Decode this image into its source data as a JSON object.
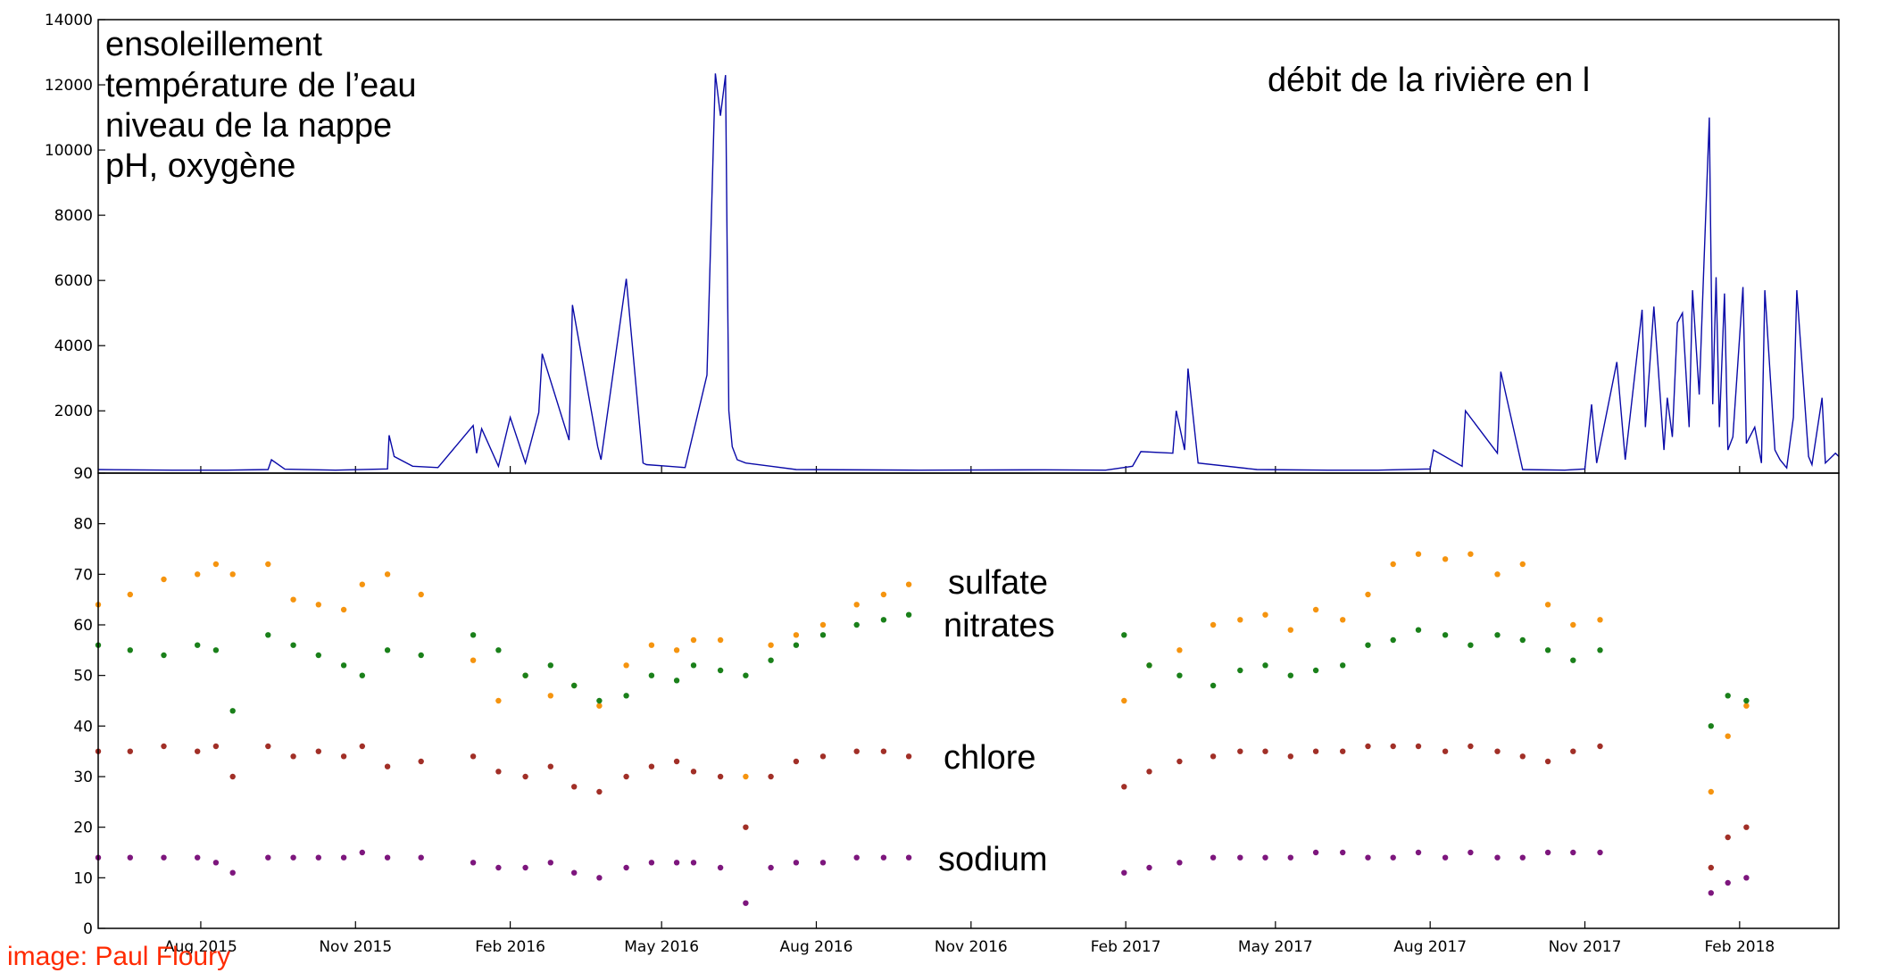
{
  "credit": "image: Paul Floury",
  "colors": {
    "flow": "#0a0aa8",
    "sulfate": "#f5940f",
    "nitrates": "#1a801a",
    "chlore": "#a12f27",
    "sodium": "#7d167d",
    "credit": "#ff2a00"
  },
  "chart_data": [
    {
      "type": "line",
      "panel": "top",
      "legend_placement": "top-left",
      "annotations_left": [
        "ensoleillement",
        "température de l’eau",
        "niveau de la nappe",
        "pH, oxygène"
      ],
      "annotation_right": "débit de la rivière en l",
      "ylim": [
        90,
        14000
      ],
      "yticks": [
        "14000",
        "12000",
        "10000",
        "8000",
        "6000",
        "4000",
        "2000",
        "90"
      ],
      "x_range": [
        "2015-06-01",
        "2018-04-01"
      ],
      "series": [
        {
          "name": "débit de la rivière en l",
          "x": [
            "2015-06-01",
            "2015-07-15",
            "2015-08-15",
            "2015-09-10",
            "2015-09-12",
            "2015-09-20",
            "2015-10-20",
            "2015-11-20",
            "2015-11-21",
            "2015-11-24",
            "2015-12-05",
            "2015-12-20",
            "2016-01-10",
            "2016-01-12",
            "2016-01-15",
            "2016-01-25",
            "2016-02-01",
            "2016-02-10",
            "2016-02-18",
            "2016-02-20",
            "2016-03-07",
            "2016-03-09",
            "2016-03-24",
            "2016-03-26",
            "2016-04-10",
            "2016-04-20",
            "2016-04-22",
            "2016-05-05",
            "2016-05-15",
            "2016-05-28",
            "2016-06-02",
            "2016-06-05",
            "2016-06-08",
            "2016-06-09",
            "2016-06-10",
            "2016-06-12",
            "2016-06-15",
            "2016-06-20",
            "2016-07-05",
            "2016-07-20",
            "2016-10-01",
            "2016-12-15",
            "2017-01-20",
            "2017-02-05",
            "2017-02-10",
            "2017-03-01",
            "2017-03-03",
            "2017-03-08",
            "2017-03-10",
            "2017-03-16",
            "2017-04-20",
            "2017-06-01",
            "2017-07-01",
            "2017-08-01",
            "2017-08-03",
            "2017-08-20",
            "2017-08-22",
            "2017-09-10",
            "2017-09-12",
            "2017-09-25",
            "2017-10-20",
            "2017-11-01",
            "2017-11-05",
            "2017-11-08",
            "2017-11-20",
            "2017-11-25",
            "2017-12-05",
            "2017-12-07",
            "2017-12-12",
            "2017-12-18",
            "2017-12-20",
            "2017-12-23",
            "2017-12-26",
            "2017-12-29",
            "2018-01-02",
            "2018-01-04",
            "2018-01-08",
            "2018-01-10",
            "2018-01-14",
            "2018-01-16",
            "2018-01-18",
            "2018-01-20",
            "2018-01-23",
            "2018-01-25",
            "2018-01-28",
            "2018-02-03",
            "2018-02-05",
            "2018-02-10",
            "2018-02-14",
            "2018-02-16",
            "2018-02-22",
            "2018-02-25",
            "2018-03-01",
            "2018-03-05",
            "2018-03-07",
            "2018-03-14",
            "2018-03-16",
            "2018-03-22",
            "2018-03-24",
            "2018-03-30",
            "2018-04-01"
          ],
          "y": [
            200,
            180,
            180,
            200,
            500,
            210,
            180,
            220,
            1250,
            600,
            300,
            260,
            1550,
            700,
            1450,
            300,
            1800,
            400,
            1950,
            3750,
            1100,
            5250,
            900,
            500,
            6050,
            400,
            350,
            300,
            260,
            3100,
            12350,
            11050,
            12300,
            7000,
            2000,
            900,
            500,
            400,
            300,
            200,
            180,
            190,
            180,
            300,
            750,
            700,
            2000,
            800,
            3300,
            400,
            200,
            180,
            180,
            220,
            800,
            300,
            2000,
            700,
            3200,
            200,
            180,
            220,
            2200,
            400,
            3500,
            500,
            5100,
            1500,
            5200,
            800,
            2400,
            1200,
            4700,
            5000,
            1500,
            5700,
            2500,
            5400,
            11000,
            2200,
            6100,
            1500,
            5600,
            800,
            1200,
            5800,
            1000,
            1500,
            400,
            5700,
            800,
            500,
            250,
            1800,
            5700,
            600,
            350,
            2400,
            400,
            700,
            600
          ]
        }
      ]
    },
    {
      "type": "scatter",
      "panel": "bottom",
      "ylim": [
        0,
        90
      ],
      "yticks": [
        "80",
        "70",
        "60",
        "50",
        "40",
        "30",
        "20",
        "10",
        "0"
      ],
      "x_range": [
        "2015-06-01",
        "2018-04-01"
      ],
      "xticks": [
        "Aug 2015",
        "Nov 2015",
        "Feb 2016",
        "May 2016",
        "Aug 2016",
        "Nov 2016",
        "Feb 2017",
        "May 2017",
        "Aug 2017",
        "Nov 2017",
        "Feb 2018"
      ],
      "series": [
        {
          "name": "sulfate",
          "x": [
            "2015-06-01",
            "2015-06-20",
            "2015-07-10",
            "2015-07-30",
            "2015-08-10",
            "2015-08-20",
            "2015-09-10",
            "2015-09-25",
            "2015-10-10",
            "2015-10-25",
            "2015-11-05",
            "2015-11-20",
            "2015-12-10",
            "2016-01-10",
            "2016-01-25",
            "2016-02-10",
            "2016-02-25",
            "2016-03-10",
            "2016-03-25",
            "2016-04-10",
            "2016-04-25",
            "2016-05-10",
            "2016-05-20",
            "2016-06-05",
            "2016-06-20",
            "2016-07-05",
            "2016-07-20",
            "2016-08-05",
            "2016-08-25",
            "2016-09-10",
            "2016-09-25",
            "2017-01-31",
            "2017-02-15",
            "2017-03-05",
            "2017-03-25",
            "2017-04-10",
            "2017-04-25",
            "2017-05-10",
            "2017-05-25",
            "2017-06-10",
            "2017-06-25",
            "2017-07-10",
            "2017-07-25",
            "2017-08-10",
            "2017-08-25",
            "2017-09-10",
            "2017-09-25",
            "2017-10-10",
            "2017-10-25",
            "2017-11-10",
            "2018-01-15",
            "2018-01-25",
            "2018-02-05"
          ],
          "y": [
            64,
            66,
            69,
            70,
            72,
            70,
            72,
            65,
            64,
            63,
            68,
            70,
            66,
            53,
            45,
            50,
            46,
            48,
            44,
            52,
            56,
            55,
            57,
            57,
            30,
            56,
            58,
            60,
            64,
            66,
            68,
            45,
            52,
            55,
            60,
            61,
            62,
            59,
            63,
            61,
            66,
            72,
            74,
            73,
            74,
            70,
            72,
            64,
            60,
            61,
            27,
            38,
            44
          ]
        },
        {
          "name": "nitrates",
          "x": [
            "2015-06-01",
            "2015-06-20",
            "2015-07-10",
            "2015-07-30",
            "2015-08-10",
            "2015-08-20",
            "2015-09-10",
            "2015-09-25",
            "2015-10-10",
            "2015-10-25",
            "2015-11-05",
            "2015-11-20",
            "2015-12-10",
            "2016-01-10",
            "2016-01-25",
            "2016-02-10",
            "2016-02-25",
            "2016-03-10",
            "2016-03-25",
            "2016-04-10",
            "2016-04-25",
            "2016-05-10",
            "2016-05-20",
            "2016-06-05",
            "2016-06-20",
            "2016-07-05",
            "2016-07-20",
            "2016-08-05",
            "2016-08-25",
            "2016-09-10",
            "2016-09-25",
            "2017-01-31",
            "2017-02-15",
            "2017-03-05",
            "2017-03-25",
            "2017-04-10",
            "2017-04-25",
            "2017-05-10",
            "2017-05-25",
            "2017-06-10",
            "2017-06-25",
            "2017-07-10",
            "2017-07-25",
            "2017-08-10",
            "2017-08-25",
            "2017-09-10",
            "2017-09-25",
            "2017-10-10",
            "2017-10-25",
            "2017-11-10",
            "2018-01-15",
            "2018-01-25",
            "2018-02-05"
          ],
          "y": [
            56,
            55,
            54,
            56,
            55,
            43,
            58,
            56,
            54,
            52,
            50,
            55,
            54,
            58,
            55,
            50,
            52,
            48,
            45,
            46,
            50,
            49,
            52,
            51,
            50,
            53,
            56,
            58,
            60,
            61,
            62,
            58,
            52,
            50,
            48,
            51,
            52,
            50,
            51,
            52,
            56,
            57,
            59,
            58,
            56,
            58,
            57,
            55,
            53,
            55,
            40,
            46,
            45
          ]
        },
        {
          "name": "chlore",
          "x": [
            "2015-06-01",
            "2015-06-20",
            "2015-07-10",
            "2015-07-30",
            "2015-08-10",
            "2015-08-20",
            "2015-09-10",
            "2015-09-25",
            "2015-10-10",
            "2015-10-25",
            "2015-11-05",
            "2015-11-20",
            "2015-12-10",
            "2016-01-10",
            "2016-01-25",
            "2016-02-10",
            "2016-02-25",
            "2016-03-10",
            "2016-03-25",
            "2016-04-10",
            "2016-04-25",
            "2016-05-10",
            "2016-05-20",
            "2016-06-05",
            "2016-06-20",
            "2016-07-05",
            "2016-07-20",
            "2016-08-05",
            "2016-08-25",
            "2016-09-10",
            "2016-09-25",
            "2017-01-31",
            "2017-02-15",
            "2017-03-05",
            "2017-03-25",
            "2017-04-10",
            "2017-04-25",
            "2017-05-10",
            "2017-05-25",
            "2017-06-10",
            "2017-06-25",
            "2017-07-10",
            "2017-07-25",
            "2017-08-10",
            "2017-08-25",
            "2017-09-10",
            "2017-09-25",
            "2017-10-10",
            "2017-10-25",
            "2017-11-10",
            "2018-01-15",
            "2018-01-25",
            "2018-02-05"
          ],
          "y": [
            35,
            35,
            36,
            35,
            36,
            30,
            36,
            34,
            35,
            34,
            36,
            32,
            33,
            34,
            31,
            30,
            32,
            28,
            27,
            30,
            32,
            33,
            31,
            30,
            20,
            30,
            33,
            34,
            35,
            35,
            34,
            28,
            31,
            33,
            34,
            35,
            35,
            34,
            35,
            35,
            36,
            36,
            36,
            35,
            36,
            35,
            34,
            33,
            35,
            36,
            12,
            18,
            20
          ]
        },
        {
          "name": "sodium",
          "x": [
            "2015-06-01",
            "2015-06-20",
            "2015-07-10",
            "2015-07-30",
            "2015-08-10",
            "2015-08-20",
            "2015-09-10",
            "2015-09-25",
            "2015-10-10",
            "2015-10-25",
            "2015-11-05",
            "2015-11-20",
            "2015-12-10",
            "2016-01-10",
            "2016-01-25",
            "2016-02-10",
            "2016-02-25",
            "2016-03-10",
            "2016-03-25",
            "2016-04-10",
            "2016-04-25",
            "2016-05-10",
            "2016-05-20",
            "2016-06-05",
            "2016-06-20",
            "2016-07-05",
            "2016-07-20",
            "2016-08-05",
            "2016-08-25",
            "2016-09-10",
            "2016-09-25",
            "2017-01-31",
            "2017-02-15",
            "2017-03-05",
            "2017-03-25",
            "2017-04-10",
            "2017-04-25",
            "2017-05-10",
            "2017-05-25",
            "2017-06-10",
            "2017-06-25",
            "2017-07-10",
            "2017-07-25",
            "2017-08-10",
            "2017-08-25",
            "2017-09-10",
            "2017-09-25",
            "2017-10-10",
            "2017-10-25",
            "2017-11-10",
            "2018-01-15",
            "2018-01-25",
            "2018-02-05"
          ],
          "y": [
            14,
            14,
            14,
            14,
            13,
            11,
            14,
            14,
            14,
            14,
            15,
            14,
            14,
            13,
            12,
            12,
            13,
            11,
            10,
            12,
            13,
            13,
            13,
            12,
            5,
            12,
            13,
            13,
            14,
            14,
            14,
            11,
            12,
            13,
            14,
            14,
            14,
            14,
            15,
            15,
            14,
            14,
            15,
            14,
            15,
            14,
            14,
            15,
            15,
            15,
            7,
            9,
            10
          ]
        }
      ],
      "series_labels": [
        "sulfate",
        "nitrates",
        "chlore",
        "sodium"
      ]
    }
  ]
}
